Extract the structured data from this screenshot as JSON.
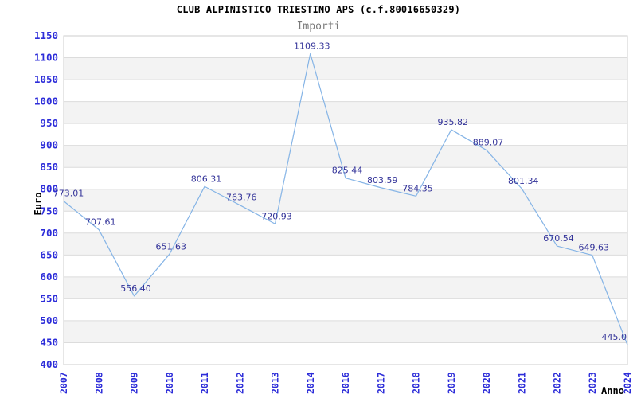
{
  "chart_data": {
    "type": "line",
    "title": "CLUB ALPINISTICO TRIESTINO APS (c.f.80016650329)",
    "subtitle": "Importi",
    "xlabel": "Anno",
    "ylabel": "Euro",
    "categories": [
      "2007",
      "2008",
      "2009",
      "2010",
      "2011",
      "2012",
      "2013",
      "2014",
      "2016",
      "2017",
      "2018",
      "2019",
      "2020",
      "2021",
      "2022",
      "2023",
      "2024"
    ],
    "values": [
      773.01,
      707.61,
      556.4,
      651.63,
      806.31,
      763.76,
      720.93,
      1109.33,
      825.44,
      803.59,
      784.35,
      935.82,
      889.07,
      801.34,
      670.54,
      649.63,
      445.0
    ],
    "point_labels": [
      "773.01",
      "707.61",
      "556.40",
      "651.63",
      "806.31",
      "763.76",
      "720.93",
      "1109.33",
      "825.44",
      "803.59",
      "784.35",
      "935.82",
      "889.07",
      "801.34",
      "670.54",
      "649.63",
      "445.0"
    ],
    "ylim": [
      400,
      1150
    ],
    "ytick_step": 50,
    "yticks": [
      400,
      450,
      500,
      550,
      600,
      650,
      700,
      750,
      800,
      850,
      900,
      950,
      1000,
      1050,
      1100,
      1150
    ],
    "grid": true,
    "legend_position": "none",
    "note": "year 2015 absent from x axis",
    "colors": {
      "line": "#85b4e6",
      "point_label": "#333399",
      "tick_label": "#2d2dd9",
      "axis_title": "#000000",
      "title": "#000000",
      "subtitle": "#7a7a7a",
      "band": "#f3f3f3",
      "gridline": "#dcdcdc",
      "plot_border": "#cccccc",
      "background": "#ffffff"
    }
  }
}
